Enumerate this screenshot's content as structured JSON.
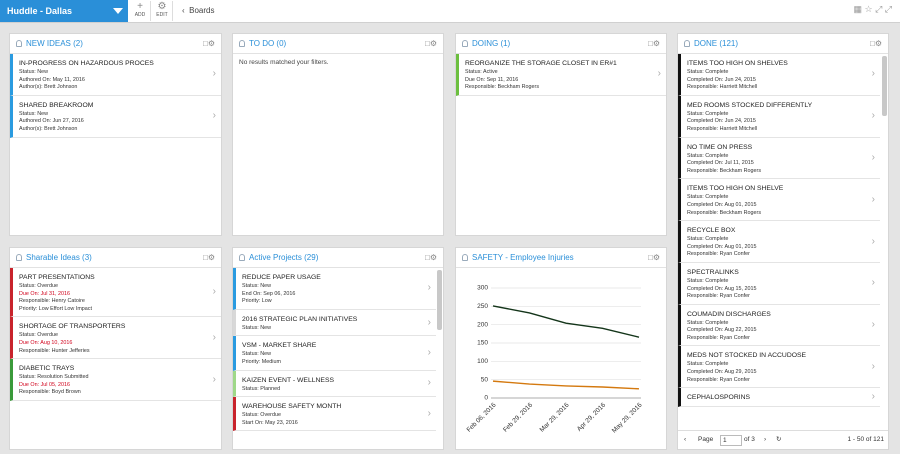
{
  "header": {
    "title": "Huddle - Dallas",
    "add": "ADD",
    "edit": "EDIT",
    "breadcrumb": "Boards"
  },
  "panels": [
    {
      "title": "NEW IDEAS (2)",
      "cards": [
        {
          "stripe": "#2a9be0",
          "title": "IN-PROGRESS ON HAZARDOUS PROCES",
          "lines": [
            "Status: New",
            "Authored On: May 11, 2016",
            "Author(s): Brett Johnson"
          ]
        },
        {
          "stripe": "#2a9be0",
          "title": "SHARED BREAKROOM",
          "lines": [
            "Status: New",
            "Authored On: Jun 27, 2016",
            "Author(s): Brett Johnson"
          ]
        }
      ]
    },
    {
      "title": "TO DO (0)",
      "empty": "No results matched your filters."
    },
    {
      "title": "DOING (1)",
      "cards": [
        {
          "stripe": "#6cbf3f",
          "title": "REORGANIZE THE STORAGE CLOSET IN ER#1",
          "lines": [
            "Status: Active",
            "Due On: Sep 11, 2016",
            "Responsible: Beckham Rogers"
          ]
        }
      ]
    },
    {
      "title": "DONE (121)",
      "cards": [
        {
          "stripe": "#111111",
          "title": "ITEMS TOO HIGH ON SHELVES",
          "lines": [
            "Status: Complete",
            "Completed On: Jun 24, 2015",
            "Responsible: Harriett Mitchell"
          ]
        },
        {
          "stripe": "#111111",
          "title": "MED ROOMS STOCKED DIFFERENTLY",
          "lines": [
            "Status: Complete",
            "Completed On: Jun 24, 2015",
            "Responsible: Harriett Mitchell"
          ]
        },
        {
          "stripe": "#111111",
          "title": "NO TIME ON PRESS",
          "lines": [
            "Status: Complete",
            "Completed On: Jul 11, 2015",
            "Responsible: Beckham Rogers"
          ]
        },
        {
          "stripe": "#111111",
          "title": "ITEMS TOO HIGH ON SHELVE",
          "lines": [
            "Status: Complete",
            "Completed On: Aug 01, 2015",
            "Responsible: Beckham Rogers"
          ]
        },
        {
          "stripe": "#111111",
          "title": "RECYCLE BOX",
          "lines": [
            "Status: Complete",
            "Completed On: Aug 01, 2015",
            "Responsible: Ryan Confer"
          ]
        },
        {
          "stripe": "#111111",
          "title": "SPECTRALINKS",
          "lines": [
            "Status: Complete",
            "Completed On: Aug 15, 2015",
            "Responsible: Ryan Confer"
          ]
        },
        {
          "stripe": "#111111",
          "title": "COUMADIN DISCHARGES",
          "lines": [
            "Status: Complete",
            "Completed On: Aug 22, 2015",
            "Responsible: Ryan Confer"
          ]
        },
        {
          "stripe": "#111111",
          "title": "MEDS NOT STOCKED IN ACCUDOSE",
          "lines": [
            "Status: Complete",
            "Completed On: Aug 29, 2015",
            "Responsible: Ryan Confer"
          ]
        },
        {
          "stripe": "#111111",
          "title": "CEPHALOSPORINS",
          "lines": []
        }
      ],
      "pager": {
        "label": "Page",
        "page": "1",
        "of": "of 3",
        "range": "1 - 50 of 121"
      }
    },
    {
      "title": "Sharable Ideas (3)",
      "cards": [
        {
          "stripe": "#c8232c",
          "title": "PART PRESENTATIONS",
          "lines": [
            "Status: Overdue",
            {
              "text": "Due On: Jul 31, 2016",
              "color": "#d0021b"
            },
            "Responsible: Henry Catoire",
            "Priority: Low Effort Low Impact"
          ]
        },
        {
          "stripe": "#c8232c",
          "title": "SHORTAGE OF TRANSPORTERS",
          "lines": [
            "Status: Overdue",
            {
              "text": "Due On: Aug 10, 2016",
              "color": "#d0021b"
            },
            "Responsible: Hunter Jefferies"
          ]
        },
        {
          "stripe": "#3a9a3a",
          "title": "DIABETIC TRAYS",
          "lines": [
            "Status: Resolution Submitted",
            {
              "text": "Due On: Jul 05, 2016",
              "color": "#d0021b"
            },
            "Responsible: Boyd Brown"
          ]
        }
      ]
    },
    {
      "title": "Active Projects (29)",
      "cards": [
        {
          "stripe": "#2a9be0",
          "title": "REDUCE PAPER USAGE",
          "lines": [
            "Status: New",
            "End On: Sep 06, 2016",
            "Priority: Low"
          ]
        },
        {
          "stripe": "#d8d8d8",
          "title": "2016 STRATEGIC PLAN INITIATIVES",
          "lines": [
            "Status: New"
          ]
        },
        {
          "stripe": "#2a9be0",
          "title": "VSM - MARKET SHARE",
          "lines": [
            "Status: New",
            "Priority: Medium"
          ]
        },
        {
          "stripe": "#9fd889",
          "title": "KAIZEN EVENT - WELLNESS",
          "lines": [
            "Status: Planned"
          ]
        },
        {
          "stripe": "#c8232c",
          "title": "WAREHOUSE SAFETY MONTH",
          "lines": [
            "Status: Overdue",
            "Start On: May 23, 2016"
          ]
        }
      ]
    },
    {
      "title": "SAFETY - Employee Injuries"
    }
  ],
  "chart_data": {
    "type": "line",
    "categories": [
      "Feb 06, 2016",
      "Feb 29, 2016",
      "Mar 29, 2016",
      "Apr 29, 2016",
      "May 29, 2016"
    ],
    "series": [
      {
        "color": "#14351a",
        "values": [
          251,
          232,
          204,
          190,
          166
        ]
      },
      {
        "color": "#d4790f",
        "values": [
          46,
          38,
          33,
          30,
          25
        ]
      }
    ],
    "ylim": [
      0,
      300
    ],
    "yticks": [
      0,
      50,
      100,
      150,
      200,
      250,
      300
    ],
    "grid": true
  }
}
